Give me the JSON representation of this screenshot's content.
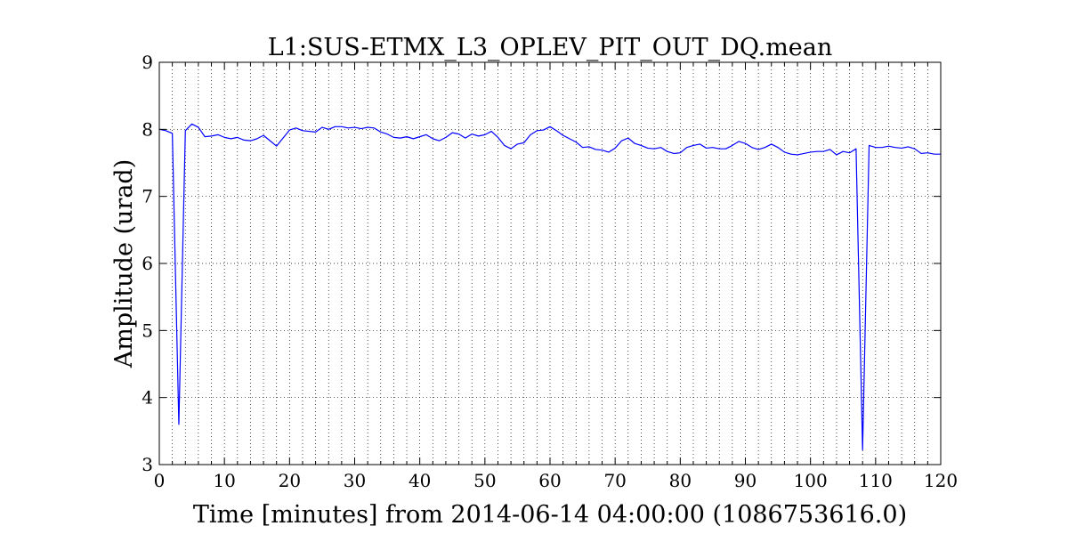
{
  "chart_data": {
    "type": "line",
    "title": "L1:SUS-ETMX_L3_OPLEV_PIT_OUT_DQ.mean",
    "xlabel": "Time [minutes] from 2014-06-14 04:00:00 (1086753616.0)",
    "ylabel": "Amplitude (urad)",
    "xlim": [
      0,
      120
    ],
    "ylim": [
      3,
      9
    ],
    "xticks": [
      0,
      10,
      20,
      30,
      40,
      50,
      60,
      70,
      80,
      90,
      100,
      110,
      120
    ],
    "yticks": [
      3,
      4,
      5,
      6,
      7,
      8,
      9
    ],
    "xtick_labels": [
      "0",
      "10",
      "20",
      "30",
      "40",
      "50",
      "60",
      "70",
      "80",
      "90",
      "100",
      "110",
      "120"
    ],
    "ytick_labels": [
      "3",
      "4",
      "5",
      "6",
      "7",
      "8",
      "9"
    ],
    "grid": true,
    "line_color": "#0000ff",
    "series": [
      {
        "x": [
          0,
          1,
          2,
          3,
          4,
          5,
          6,
          7,
          8,
          9,
          10,
          11,
          12,
          13,
          14,
          15,
          16,
          17,
          18,
          19,
          20,
          21,
          22,
          23,
          24,
          25,
          26,
          27,
          28,
          29,
          30,
          31,
          32,
          33,
          34,
          35,
          36,
          37,
          38,
          39,
          40,
          41,
          42,
          43,
          44,
          45,
          46,
          47,
          48,
          49,
          50,
          51,
          52,
          53,
          54,
          55,
          56,
          57,
          58,
          59,
          60,
          61,
          62,
          63,
          64,
          65,
          66,
          67,
          68,
          69,
          70,
          71,
          72,
          73,
          74,
          75,
          76,
          77,
          78,
          79,
          80,
          81,
          82,
          83,
          84,
          85,
          86,
          87,
          88,
          89,
          90,
          91,
          92,
          93,
          94,
          95,
          96,
          97,
          98,
          99,
          100,
          101,
          102,
          103,
          104,
          105,
          106,
          107,
          108,
          109,
          110,
          111,
          112,
          113,
          114,
          115,
          116,
          117,
          118,
          119,
          120
        ],
        "y": [
          8.0,
          7.98,
          7.94,
          3.6,
          7.98,
          8.08,
          8.03,
          7.89,
          7.9,
          7.92,
          7.88,
          7.86,
          7.88,
          7.84,
          7.83,
          7.86,
          7.91,
          7.83,
          7.75,
          7.87,
          7.99,
          8.02,
          7.98,
          7.97,
          7.96,
          8.03,
          8.0,
          8.04,
          8.04,
          8.02,
          8.03,
          8.01,
          8.03,
          8.02,
          7.96,
          7.93,
          7.88,
          7.87,
          7.89,
          7.86,
          7.89,
          7.92,
          7.86,
          7.83,
          7.88,
          7.95,
          7.93,
          7.87,
          7.93,
          7.9,
          7.92,
          7.97,
          7.88,
          7.76,
          7.71,
          7.78,
          7.8,
          7.92,
          7.98,
          7.99,
          8.04,
          7.98,
          7.91,
          7.86,
          7.81,
          7.73,
          7.74,
          7.7,
          7.69,
          7.66,
          7.72,
          7.83,
          7.87,
          7.79,
          7.76,
          7.72,
          7.71,
          7.73,
          7.67,
          7.64,
          7.65,
          7.73,
          7.76,
          7.78,
          7.72,
          7.73,
          7.71,
          7.71,
          7.76,
          7.82,
          7.79,
          7.73,
          7.7,
          7.73,
          7.78,
          7.73,
          7.66,
          7.63,
          7.62,
          7.64,
          7.66,
          7.67,
          7.67,
          7.7,
          7.62,
          7.67,
          7.65,
          7.71,
          3.22,
          7.76,
          7.73,
          7.73,
          7.75,
          7.73,
          7.72,
          7.74,
          7.71,
          7.64,
          7.65,
          7.63,
          7.63
        ]
      }
    ]
  }
}
